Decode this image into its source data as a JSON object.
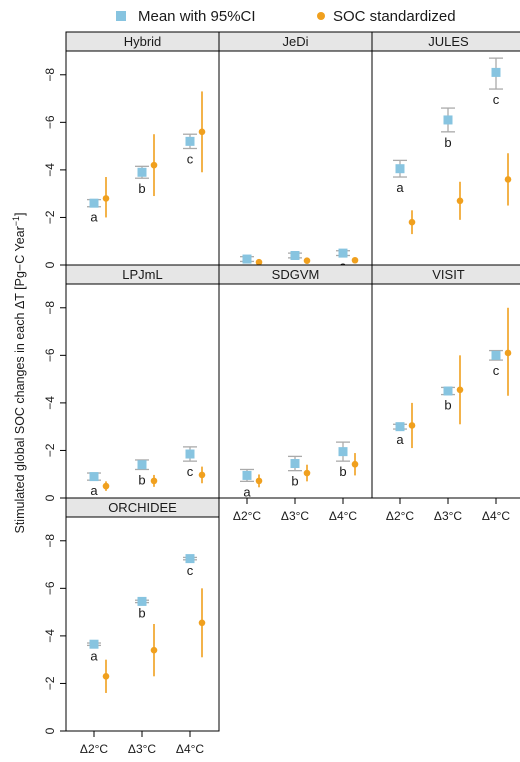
{
  "chart_data": {
    "type": "scatter",
    "legend": {
      "position": "top-center",
      "entries": [
        {
          "name": "Mean with 95%CI",
          "color": "#87c4e0",
          "shape": "square"
        },
        {
          "name": "SOC standardized",
          "color": "#f0a01e",
          "shape": "circle"
        }
      ]
    },
    "ylabel": "Stimulated global SOC changes in each ΔT [Pg−C Year",
    "ylabel_sup": "−1",
    "ylabel_close": "]",
    "y_reversed": true,
    "ylim": [
      0,
      9
    ],
    "y_ticks": [
      {
        "value": 0,
        "label": "0"
      },
      {
        "value": 2,
        "label": "−2"
      },
      {
        "value": 4,
        "label": "−4"
      },
      {
        "value": 6,
        "label": "−6"
      },
      {
        "value": 8,
        "label": "−8"
      }
    ],
    "categories": [
      "Δ2°C",
      "Δ3°C",
      "Δ4°C"
    ],
    "colors": {
      "mean": "#87c4e0",
      "ci": "#aaaaaa",
      "soc": "#f0a01e",
      "strip_bg": "#e6e6e6"
    },
    "panels": [
      {
        "name": "Hybrid",
        "mean": [
          2.6,
          3.9,
          5.2
        ],
        "ci_low": [
          2.45,
          3.65,
          4.9
        ],
        "ci_high": [
          2.75,
          4.15,
          5.5
        ],
        "soc": [
          2.8,
          4.2,
          5.6
        ],
        "soc_low": [
          2.0,
          2.9,
          3.9
        ],
        "soc_high": [
          3.7,
          5.5,
          7.3
        ],
        "letters": [
          "a",
          "b",
          "c"
        ]
      },
      {
        "name": "JeDi",
        "mean": [
          0.25,
          0.4,
          0.5
        ],
        "ci_low": [
          0.15,
          0.3,
          0.4
        ],
        "ci_high": [
          0.35,
          0.5,
          0.6
        ],
        "soc": [
          0.12,
          0.18,
          0.2
        ],
        "soc_low": [
          0.1,
          0.15,
          0.17
        ],
        "soc_high": [
          0.14,
          0.21,
          0.23
        ],
        "letters": [
          "a",
          "a",
          "a"
        ]
      },
      {
        "name": "JULES",
        "mean": [
          4.05,
          6.1,
          8.1
        ],
        "ci_low": [
          3.7,
          5.6,
          7.4
        ],
        "ci_high": [
          4.4,
          6.6,
          8.7
        ],
        "soc": [
          1.8,
          2.7,
          3.6
        ],
        "soc_low": [
          1.3,
          1.9,
          2.5
        ],
        "soc_high": [
          2.3,
          3.5,
          4.7
        ],
        "letters": [
          "a",
          "b",
          "c"
        ]
      },
      {
        "name": "LPJmL",
        "mean": [
          0.9,
          1.4,
          1.85
        ],
        "ci_low": [
          0.75,
          1.2,
          1.55
        ],
        "ci_high": [
          1.05,
          1.6,
          2.15
        ],
        "soc": [
          0.5,
          0.72,
          0.97
        ],
        "soc_low": [
          0.3,
          0.47,
          0.62
        ],
        "soc_high": [
          0.7,
          0.97,
          1.32
        ],
        "letters": [
          "a",
          "b",
          "c"
        ]
      },
      {
        "name": "SDGVM",
        "mean": [
          0.95,
          1.45,
          1.95
        ],
        "ci_low": [
          0.7,
          1.15,
          1.55
        ],
        "ci_high": [
          1.2,
          1.75,
          2.35
        ],
        "soc": [
          0.72,
          1.05,
          1.42
        ],
        "soc_low": [
          0.45,
          0.7,
          0.95
        ],
        "soc_high": [
          0.99,
          1.4,
          1.89
        ],
        "letters": [
          "a",
          "b",
          "b"
        ]
      },
      {
        "name": "VISIT",
        "mean": [
          3.0,
          4.5,
          6.0
        ],
        "ci_low": [
          2.9,
          4.35,
          5.8
        ],
        "ci_high": [
          3.1,
          4.65,
          6.2
        ],
        "soc": [
          3.05,
          4.55,
          6.1
        ],
        "soc_low": [
          2.1,
          3.1,
          4.3
        ],
        "soc_high": [
          4.0,
          6.0,
          8.0
        ],
        "letters": [
          "a",
          "b",
          "c"
        ]
      },
      {
        "name": "ORCHIDEE",
        "mean": [
          3.65,
          5.45,
          7.25
        ],
        "ci_low": [
          3.6,
          5.4,
          7.2
        ],
        "ci_high": [
          3.7,
          5.5,
          7.3
        ],
        "soc": [
          2.3,
          3.4,
          4.55
        ],
        "soc_low": [
          1.6,
          2.3,
          3.1
        ],
        "soc_high": [
          3.0,
          4.5,
          6.0
        ],
        "letters": [
          "a",
          "b",
          "c"
        ]
      }
    ]
  }
}
